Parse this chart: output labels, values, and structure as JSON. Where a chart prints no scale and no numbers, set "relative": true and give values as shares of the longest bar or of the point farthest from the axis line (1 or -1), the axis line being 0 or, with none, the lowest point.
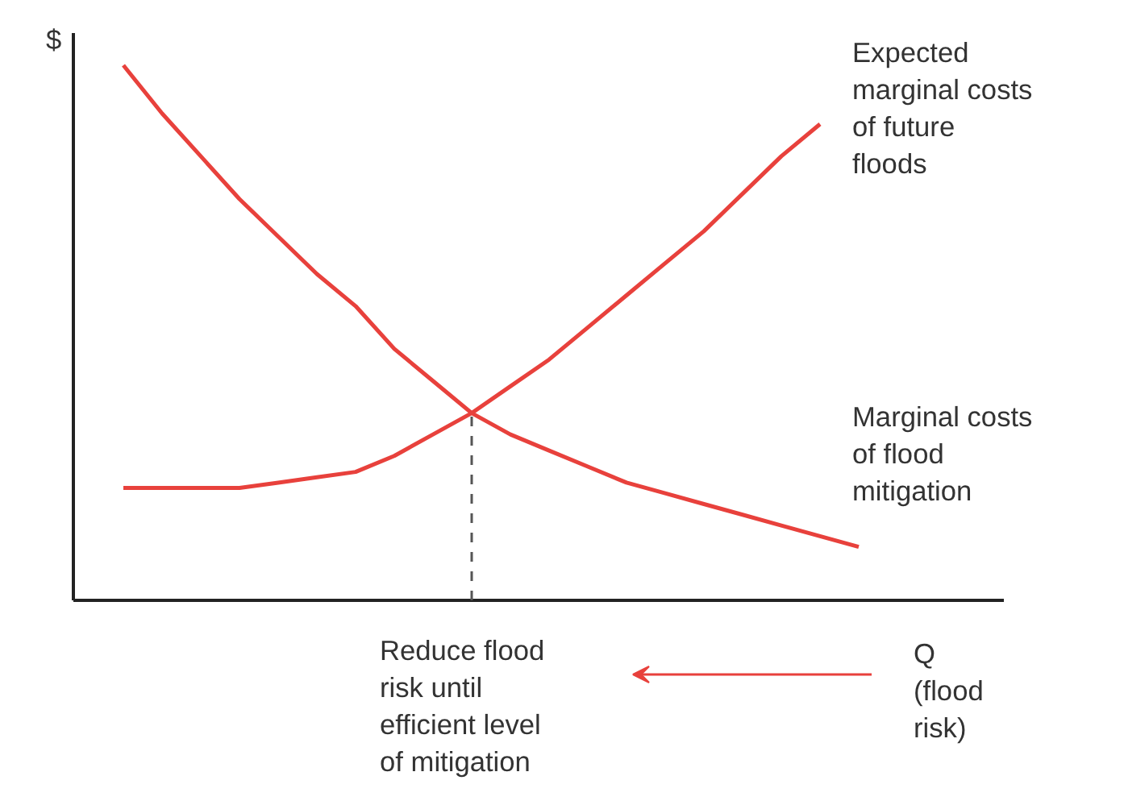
{
  "chart_data": {
    "type": "line",
    "relative": true,
    "ylabel": "$",
    "xlabel": "Q (flood risk)",
    "categories": [
      null,
      null,
      null,
      null,
      null,
      null,
      null,
      null,
      null,
      null,
      null,
      null,
      null,
      null,
      null,
      null,
      null,
      null,
      null,
      null
    ],
    "series": [
      {
        "name": "Expected marginal costs of future floods",
        "color": "#e8413c",
        "values": [
          0.21,
          0.21,
          0.21,
          0.21,
          0.22,
          0.23,
          0.24,
          0.27,
          0.31,
          0.35,
          0.4,
          0.45,
          0.51,
          0.57,
          0.63,
          0.69,
          0.76,
          0.83,
          0.89,
          null
        ]
      },
      {
        "name": "Marginal costs of flood mitigation",
        "color": "#e8413c",
        "values": [
          1.0,
          0.91,
          0.83,
          0.75,
          0.68,
          0.61,
          0.55,
          0.47,
          0.41,
          0.35,
          0.31,
          0.28,
          0.25,
          0.22,
          0.2,
          0.18,
          0.16,
          0.14,
          0.12,
          0.1
        ]
      }
    ],
    "annotations": [
      "Reduce flood risk until efficient level of mitigation"
    ],
    "grid": false,
    "marker": "none",
    "line_style": "solid"
  }
}
